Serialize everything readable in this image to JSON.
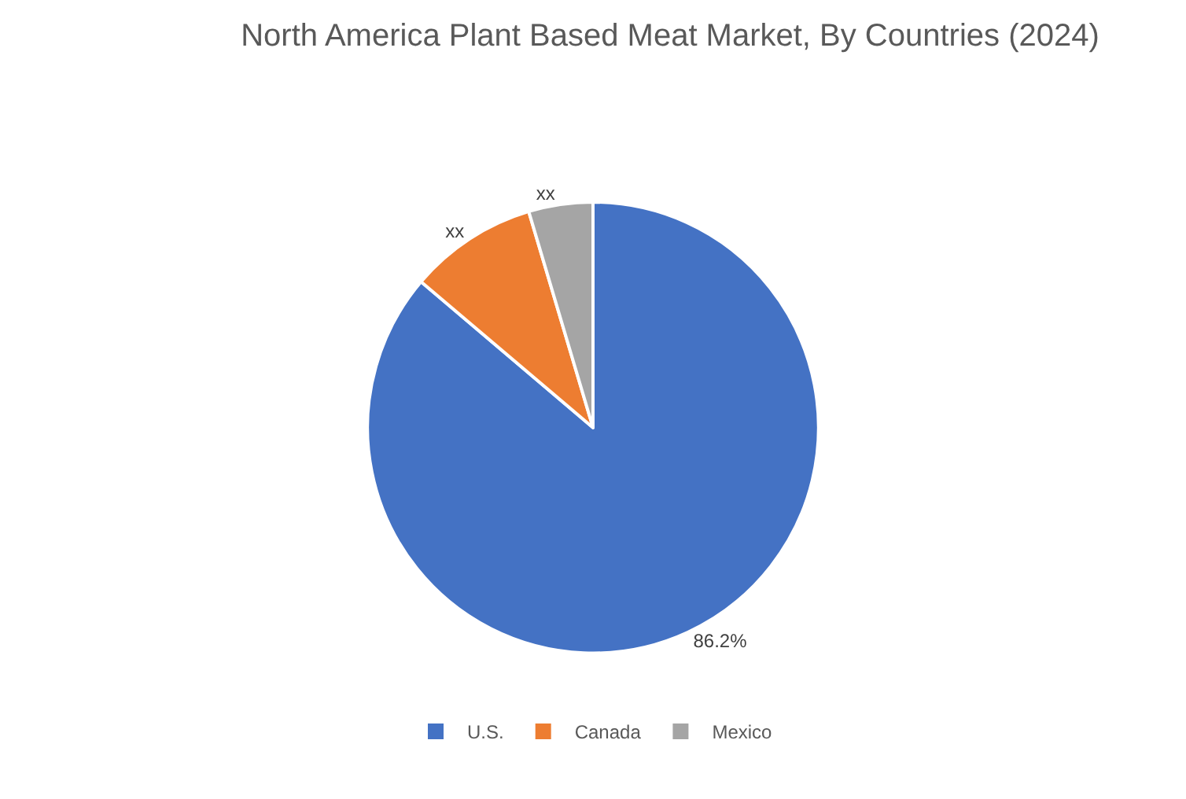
{
  "chart_data": {
    "type": "pie",
    "title": "North America Plant Based Meat Market, By Countries (2024)",
    "categories": [
      "U.S.",
      "Canada",
      "Mexico"
    ],
    "values": [
      86.2,
      9.2,
      4.6
    ],
    "colors": [
      "#4472c4",
      "#ed7d31",
      "#a5a5a5"
    ],
    "value_labels": [
      "86.2%",
      "xx",
      "xx"
    ],
    "legend": "bottom"
  }
}
